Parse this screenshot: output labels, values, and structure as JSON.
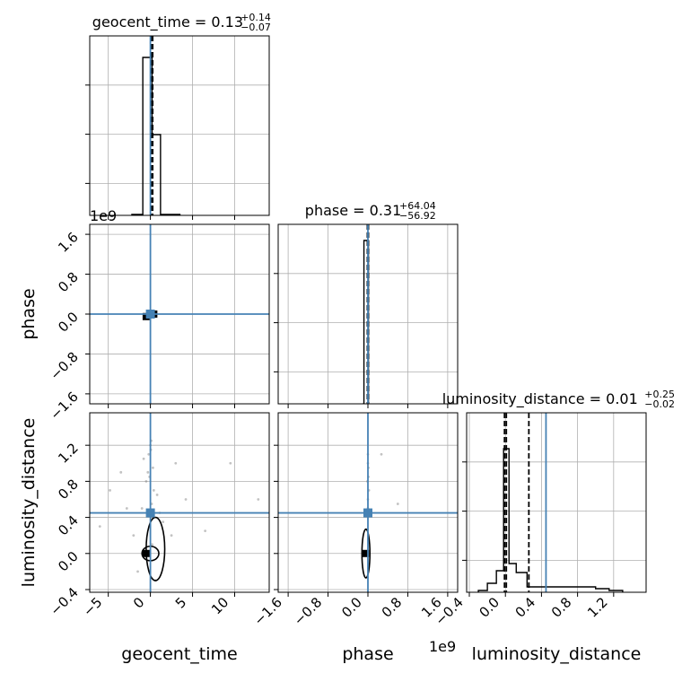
{
  "chart_data": {
    "type": "corner",
    "colors": {
      "truth": "#4682b4",
      "hist": "#000000",
      "grid": "#b0b0b0",
      "points": "#777777"
    },
    "params": [
      "geocent_time",
      "phase",
      "luminosity_distance"
    ],
    "axis_labels": {
      "geocent_time": "geocent_time",
      "phase": "phase",
      "luminosity_distance": "luminosity_distance"
    },
    "scale_offsets": {
      "phase": "1e9",
      "luminosity_distance": "1e9"
    },
    "truths": {
      "geocent_time": 0.0,
      "phase": 0.0,
      "luminosity_distance": 0.45
    },
    "ranges": {
      "geocent_time": [
        -7.2,
        14.1
      ],
      "phase": [
        -1.8,
        1.8
      ],
      "luminosity_distance": [
        -0.43,
        1.56
      ]
    },
    "ticks": {
      "geocent_time": {
        "values": [
          -5,
          0,
          5,
          10
        ],
        "labels": [
          "−5",
          "0",
          "5",
          "10"
        ]
      },
      "phase": {
        "values": [
          -1.6,
          -0.8,
          0.0,
          0.8,
          1.6
        ],
        "labels": [
          "−1.6",
          "−0.8",
          "0.0",
          "0.8",
          "1.6"
        ]
      },
      "luminosity_distance": {
        "values": [
          -0.4,
          0.0,
          0.4,
          0.8,
          1.2
        ],
        "labels": [
          "−0.4",
          "0.0",
          "0.4",
          "0.8",
          "1.2"
        ]
      }
    },
    "titles": [
      {
        "param": "geocent_time",
        "base": "geocent_time = 0.13",
        "plus": "+0.14",
        "minus": "−0.07"
      },
      {
        "param": "phase",
        "base": "phase = 0.31",
        "plus": "+64.04",
        "minus": "−56.92"
      },
      {
        "param": "luminosity_distance",
        "base": "luminosity_distance = 0.01",
        "plus": "+0.25",
        "minus": "−0.02"
      }
    ],
    "histograms": {
      "geocent_time": {
        "bins": [
          [
            -2.2,
            -0.9,
            0.005
          ],
          [
            -0.9,
            -0.8,
            0.88
          ],
          [
            -0.8,
            0.2,
            0.88
          ],
          [
            0.2,
            1.2,
            0.45
          ],
          [
            1.2,
            3.5,
            0.005
          ]
        ],
        "quantiles": [
          0.06,
          0.13,
          0.27
        ]
      },
      "phase": {
        "bins": [
          [
            -0.1,
            -0.08,
            0.0
          ],
          [
            -0.08,
            -0.02,
            0.91
          ],
          [
            -0.02,
            0.01,
            0.91
          ]
        ],
        "quantiles": [
          -0.01,
          0.0,
          0.01
        ]
      },
      "luminosity_distance": {
        "bins": [
          [
            -0.3,
            -0.2,
            0.01
          ],
          [
            -0.2,
            -0.1,
            0.05
          ],
          [
            -0.1,
            -0.02,
            0.12
          ],
          [
            -0.02,
            0.04,
            0.8
          ],
          [
            0.04,
            0.12,
            0.16
          ],
          [
            0.12,
            0.24,
            0.11
          ],
          [
            0.24,
            0.5,
            0.03
          ],
          [
            0.5,
            1.0,
            0.03
          ],
          [
            1.0,
            1.15,
            0.02
          ],
          [
            1.15,
            1.3,
            0.01
          ]
        ],
        "quantiles": [
          -0.01,
          0.01,
          0.26
        ]
      }
    },
    "scatter": {
      "gt_ld": {
        "x": [
          0.1,
          -0.2,
          0.3,
          -0.5,
          0.8,
          -1.0,
          1.5,
          -2.0,
          0.2,
          0.0,
          -0.3,
          0.4,
          -3.5,
          4.2,
          -6.0,
          9.5,
          12.8,
          -1.5,
          2.5,
          0.6,
          -0.8,
          1.1,
          -4.8,
          6.5,
          0.15,
          -0.1,
          0.25,
          0.05,
          3.0,
          -2.8
        ],
        "y": [
          1.25,
          1.1,
          0.95,
          0.8,
          0.65,
          0.5,
          0.35,
          0.2,
          0.1,
          1.2,
          0.9,
          0.7,
          0.9,
          0.6,
          0.3,
          1.0,
          0.6,
          -0.2,
          0.2,
          -0.3,
          1.05,
          0.45,
          0.7,
          0.25,
          0.55,
          0.85,
          0.4,
          1.15,
          1.0,
          0.5
        ]
      },
      "ph_ld": {
        "x": [
          0.0,
          0.01,
          -0.01,
          0.02,
          0.0,
          0.0,
          0.01,
          0.27,
          0.6,
          0.0
        ],
        "y": [
          1.1,
          0.95,
          0.8,
          0.7,
          0.6,
          1.0,
          0.85,
          1.1,
          0.55,
          0.5
        ]
      }
    },
    "contours": {
      "gt_ld": [
        {
          "x": 0.0,
          "y": 0.0,
          "rx": 1.0,
          "ry": 0.08
        },
        {
          "x": 0.6,
          "y": 0.05,
          "rx": 1.1,
          "ry": 0.35
        }
      ],
      "ph_ld": [
        {
          "x": -0.04,
          "y": 0.0,
          "rx": 0.08,
          "ry": 0.27
        }
      ]
    },
    "density_blocks": {
      "gt_ph": [
        {
          "x": -0.5,
          "y": -0.05
        },
        {
          "x": 0.4,
          "y": 0.0
        }
      ],
      "gt_ld": [
        {
          "x": -0.5,
          "y": 0.0
        }
      ],
      "ph_ld": [
        {
          "x": -0.05,
          "y": 0.0
        }
      ]
    },
    "grid": true
  }
}
